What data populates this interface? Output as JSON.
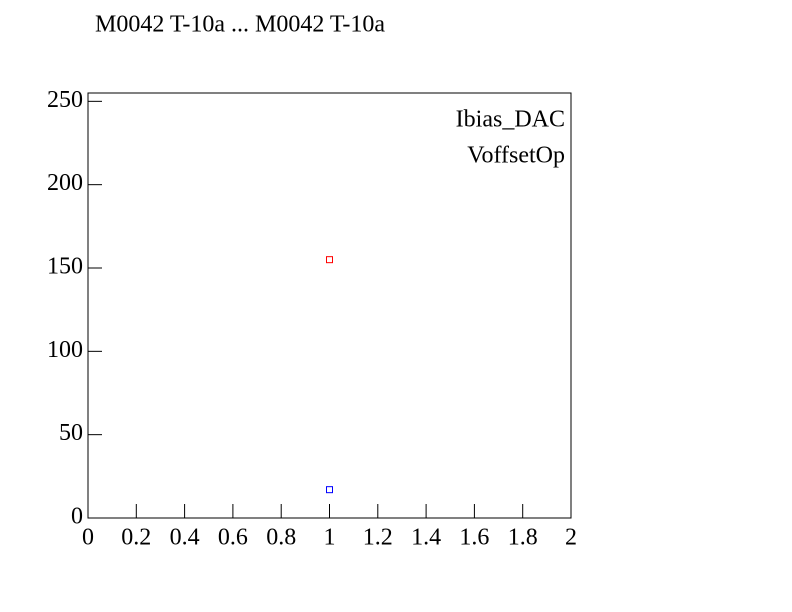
{
  "chart_data": {
    "type": "scatter",
    "title": "M0042 T-10a ... M0042 T-10a",
    "series": [
      {
        "name": "Ibias_DAC",
        "color": "#ff0000",
        "x": [
          1
        ],
        "values": [
          155
        ]
      },
      {
        "name": "VoffsetOp",
        "color": "#0000ff",
        "x": [
          1
        ],
        "values": [
          17
        ]
      }
    ],
    "xlim": [
      0,
      2
    ],
    "xticks": [
      0,
      0.2,
      0.4,
      0.6,
      0.8,
      1,
      1.2,
      1.4,
      1.6,
      1.8,
      2
    ],
    "ylim": [
      0,
      255
    ],
    "yticks": [
      0,
      50,
      100,
      150,
      200,
      250
    ],
    "legend": "top-right"
  }
}
